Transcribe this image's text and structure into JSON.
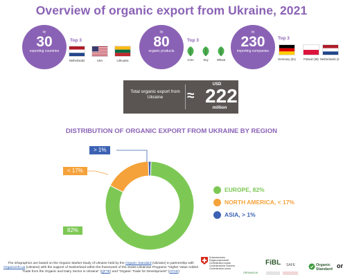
{
  "title": "Overview of organic export from Ukraine, 2021",
  "stats": [
    {
      "approx": "≈",
      "value": "30",
      "label": "exporting countries",
      "top3_label": "Top 3",
      "items": [
        {
          "name": "Netherlands",
          "icon": "netherlands-flag-icon"
        },
        {
          "name": "USA",
          "icon": "usa-flag-icon"
        },
        {
          "name": "Lithuania",
          "icon": "lithuania-flag-icon"
        }
      ]
    },
    {
      "approx": "≈",
      "value": "80",
      "label": "organic products",
      "top3_label": "Top 3",
      "items": [
        {
          "name": "Corn",
          "icon": "leaf-icon"
        },
        {
          "name": "Soy",
          "icon": "leaf-icon"
        },
        {
          "name": "Wheat",
          "icon": "leaf-icon"
        }
      ]
    },
    {
      "approx": "≈",
      "value": "230",
      "label": "importing companies",
      "top3_label": "Top 3",
      "items": [
        {
          "name": "Germany (51)",
          "icon": "germany-flag-icon"
        },
        {
          "name": "Poland (38)",
          "icon": "poland-flag-icon"
        },
        {
          "name": "Netherlands (2",
          "icon": "netherlands-flag-icon"
        }
      ]
    }
  ],
  "total": {
    "label": "Total organic export from Ukraine",
    "approx": "≈",
    "currency": "USD",
    "value": "222",
    "unit": "million"
  },
  "chart_title": "DISTRIBUTION OF ORGANIC EXPORT FROM UKRAINE BY REGION",
  "chart_data": {
    "type": "pie",
    "donut": true,
    "categories": [
      "EUROPE",
      "NORTH AMERICA",
      "ASIA"
    ],
    "values": [
      82,
      17,
      1
    ],
    "callouts": [
      "82%",
      "< 17%",
      "> 1%"
    ],
    "legend": [
      "EUROPE, 82%",
      "NORTH AMERICA, < 17%",
      "ASIA, > 1%"
    ],
    "colors": [
      "#7dc855",
      "#f5a23a",
      "#3b62b3"
    ],
    "legend_position": "right"
  },
  "footer": {
    "text_before": "The infographics are based on the Organic Market Study of Ukraine held by the ",
    "link1": "Organic Standard",
    "text_mid1": " (Ukraine) in partnership with ",
    "link2": "Organicinfo.ua",
    "text_mid2": " (Ukraine) with the support of Switzerland within the framework of the Swiss-Ukrainian Programs \"Higher Value Added Trade from the Organic and Dairy Sector in Ukraine\" (",
    "link3": "QFTE",
    "text_mid3": ") and \"Organic Trade for Development\" (",
    "link4": "OTAD",
    "text_end": ")"
  },
  "logos": {
    "swiss": "Schweizerische Eidgenossenschaft Confédération suisse Confederazione Svizzera Confederaziun svizra",
    "fibl": "FiBL",
    "safe": "SAFE",
    "organic_standard": "Organic Standard",
    "ot": "on",
    "ukr": "ORGANICUA"
  }
}
